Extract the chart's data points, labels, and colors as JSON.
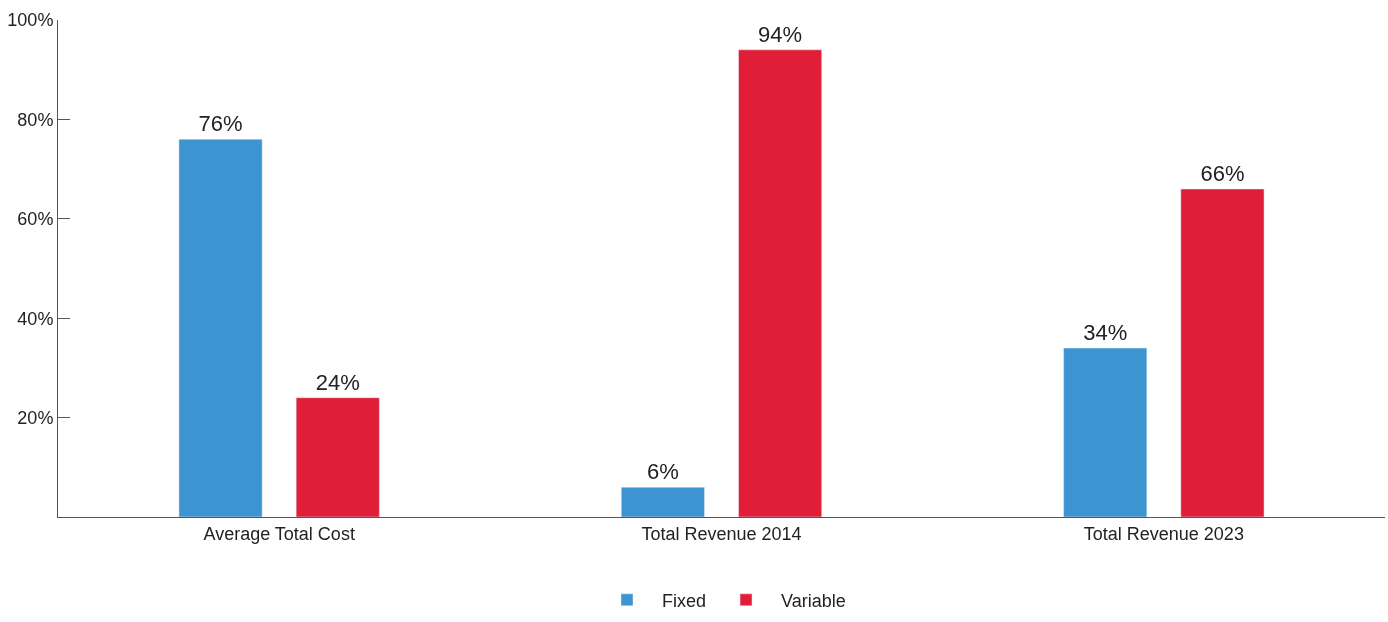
{
  "chart_data": {
    "type": "bar",
    "categories": [
      "Average Total Cost",
      "Total Revenue 2014",
      "Total Revenue 2023"
    ],
    "series": [
      {
        "name": "Fixed",
        "color": "#3d94d1",
        "values": [
          76,
          6,
          34
        ],
        "value_labels": [
          "76%",
          "6%",
          "34%"
        ]
      },
      {
        "name": "Variable",
        "color": "#e01e37",
        "values": [
          24,
          94,
          66
        ],
        "value_labels": [
          "24%",
          "94%",
          "66%"
        ]
      }
    ],
    "ylim": [
      0,
      100
    ],
    "yticks": [
      {
        "value": 0,
        "label": null
      },
      {
        "value": 20,
        "label": "20%"
      },
      {
        "value": 40,
        "label": "40%"
      },
      {
        "value": 60,
        "label": "60%"
      },
      {
        "value": 80,
        "label": "80%"
      },
      {
        "value": 100,
        "label": "100%"
      }
    ],
    "legend": "bottom"
  }
}
